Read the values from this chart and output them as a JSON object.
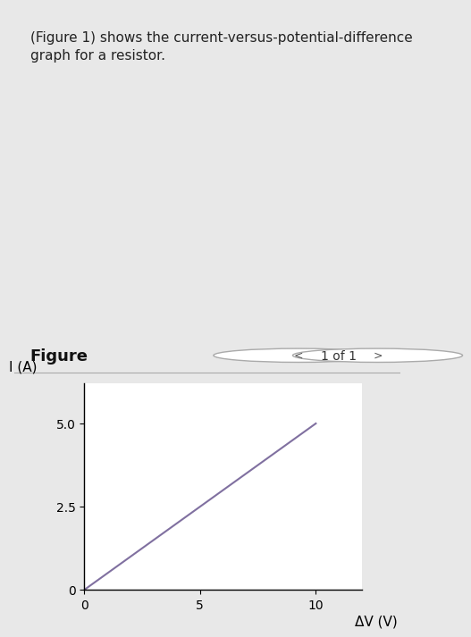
{
  "header_text": "(Figure 1) shows the current-versus-potential-difference\ngraph for a resistor.",
  "figure_label": "Figure",
  "nav_text": "1 of 1",
  "line_x": [
    0,
    10
  ],
  "line_y": [
    0,
    5.0
  ],
  "xlabel": "ΔV (V)",
  "ylabel": "I (A)",
  "xlim": [
    0,
    12
  ],
  "ylim": [
    0,
    6.2
  ],
  "xticks": [
    0,
    5,
    10
  ],
  "yticks": [
    0,
    2.5,
    5.0
  ],
  "line_color": "#8070a0",
  "header_bg_color": "#d0e4f0",
  "body_bg_color": "#e8e8e8",
  "plot_bg_color": "#ffffff",
  "header_fontsize": 11,
  "axis_label_fontsize": 11,
  "tick_fontsize": 10,
  "figure_label_fontsize": 13,
  "nav_fontsize": 10
}
